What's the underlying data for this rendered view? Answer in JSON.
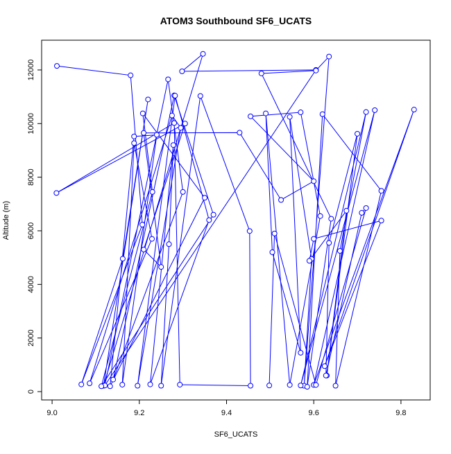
{
  "chart_data": {
    "type": "line",
    "title": "ATOM3 Southbound SF6_UCATS",
    "x_label": "SF6_UCATS",
    "y_label": "Altitude (m)",
    "color": "#0000ff",
    "x": [
      9.011,
      9.18,
      9.207,
      9.067,
      9.162,
      9.22,
      9.118,
      9.346,
      9.298,
      9.605,
      9.121,
      9.266,
      9.3,
      9.14,
      9.28,
      9.37,
      9.113,
      9.23,
      9.208,
      9.35,
      9.133,
      9.188,
      9.24,
      9.161,
      9.188,
      9.229,
      9.086,
      9.275,
      9.295,
      9.196,
      9.282,
      9.36,
      9.225,
      9.278,
      9.268,
      9.25,
      9.34,
      9.453,
      9.455,
      9.293,
      9.28,
      9.01,
      9.305,
      9.21,
      9.25,
      9.21,
      9.43,
      9.525,
      9.6,
      9.455,
      9.57,
      9.615,
      9.545,
      9.49,
      9.505,
      9.57,
      9.545,
      9.595,
      9.578,
      9.635,
      9.605,
      9.48,
      9.64,
      9.585,
      9.62,
      9.755,
      9.65,
      9.66,
      9.72,
      9.57,
      9.74,
      9.6,
      9.83,
      9.625,
      9.755,
      9.6,
      9.59,
      9.675,
      9.63,
      9.7,
      9.635,
      9.628,
      9.71,
      9.72,
      9.605,
      9.51,
      9.498
    ],
    "values": [
      12150,
      11800,
      6230,
      270,
      4960,
      10900,
      220,
      12600,
      11950,
      12000,
      230,
      11650,
      7450,
      450,
      11050,
      6600,
      200,
      7450,
      10380,
      7230,
      200,
      9520,
      9580,
      260,
      9270,
      5700,
      310,
      10300,
      9840,
      220,
      11040,
      6400,
      270,
      9200,
      5500,
      220,
      11030,
      5990,
      220,
      260,
      10020,
      7410,
      10000,
      5300,
      4650,
      9650,
      9660,
      7150,
      7850,
      10270,
      10420,
      6550,
      250,
      10380,
      5200,
      1450,
      10250,
      4950,
      220,
      12500,
      11980,
      11870,
      6450,
      180,
      10350,
      7490,
      220,
      5250,
      10430,
      230,
      10500,
      250,
      10520,
      950,
      6380,
      5700,
      4880,
      6750,
      600,
      9620,
      5550,
      600,
      6670,
      6850,
      250,
      5900,
      230
    ],
    "xlim": [
      8.976,
      9.867
    ],
    "ylim": [
      -310,
      13110
    ],
    "xticks": [
      {
        "value": 9.0,
        "label": "9.0"
      },
      {
        "value": 9.2,
        "label": "9.2"
      },
      {
        "value": 9.4,
        "label": "9.4"
      },
      {
        "value": 9.6,
        "label": "9.6"
      },
      {
        "value": 9.8,
        "label": "9.8"
      }
    ],
    "yticks": [
      0,
      2000,
      4000,
      6000,
      8000,
      10000,
      12000
    ]
  }
}
